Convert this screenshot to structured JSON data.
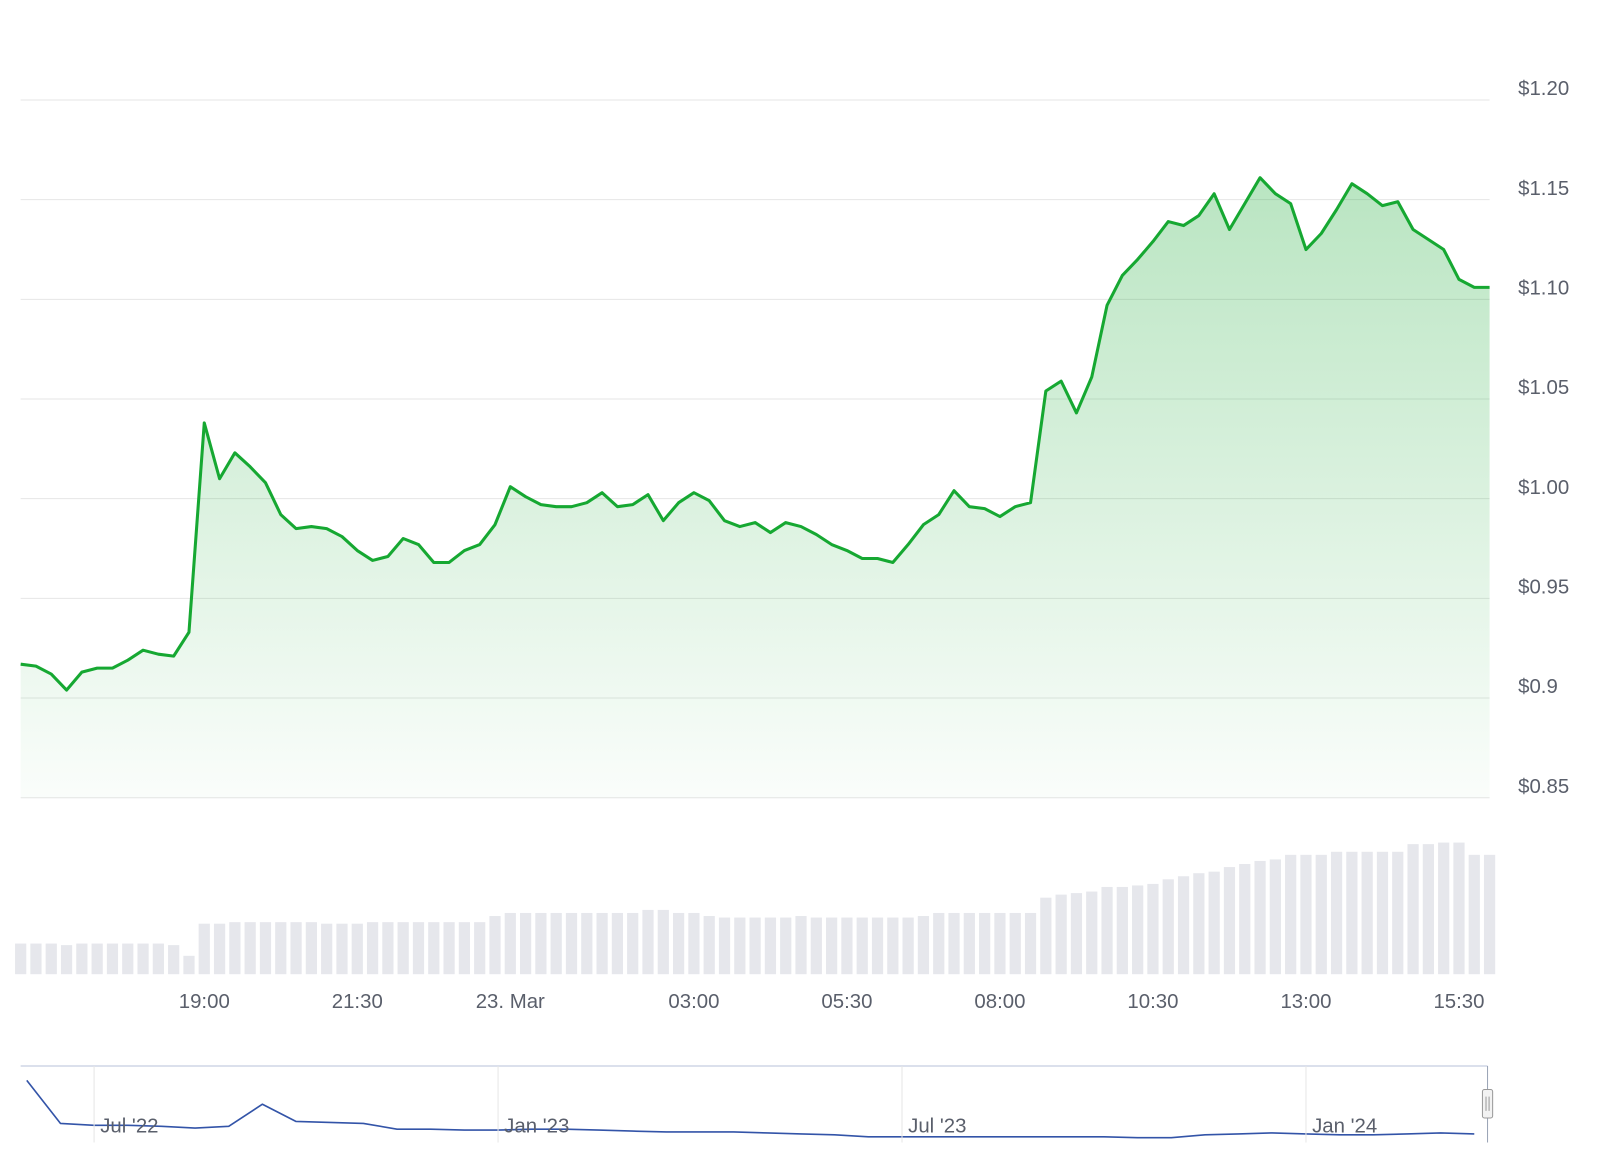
{
  "chart_data": [
    {
      "type": "area",
      "categories": [
        null,
        null,
        null,
        null,
        null,
        null,
        null,
        null,
        null,
        null,
        null,
        null,
        "19:00",
        null,
        null,
        null,
        null,
        null,
        null,
        null,
        null,
        null,
        "21:30",
        null,
        null,
        null,
        null,
        null,
        null,
        null,
        null,
        null,
        "23. Mar",
        null,
        null,
        null,
        null,
        null,
        null,
        null,
        null,
        null,
        null,
        null,
        "03:00",
        null,
        null,
        null,
        null,
        null,
        null,
        null,
        null,
        null,
        "05:30",
        null,
        null,
        null,
        null,
        null,
        null,
        null,
        null,
        null,
        "08:00",
        null,
        null,
        null,
        null,
        null,
        null,
        null,
        null,
        null,
        "10:30",
        null,
        null,
        null,
        null,
        null,
        null,
        null,
        null,
        null,
        "13:00",
        null,
        null,
        null,
        null,
        null,
        null,
        null,
        null,
        null,
        "15:30",
        null,
        null
      ],
      "series": [
        {
          "color": "#16a832",
          "values": [
            0.917,
            0.916,
            0.912,
            0.904,
            0.913,
            0.915,
            0.915,
            0.919,
            0.924,
            0.922,
            0.921,
            0.933,
            1.038,
            1.01,
            1.023,
            1.016,
            1.008,
            0.992,
            0.985,
            0.986,
            0.985,
            0.981,
            0.974,
            0.969,
            0.971,
            0.98,
            0.977,
            0.968,
            0.968,
            0.974,
            0.977,
            0.987,
            1.006,
            1.001,
            0.997,
            0.996,
            0.996,
            0.998,
            1.003,
            0.996,
            0.997,
            1.002,
            0.989,
            0.998,
            1.003,
            0.999,
            0.989,
            0.986,
            0.988,
            0.983,
            0.988,
            0.986,
            0.982,
            0.977,
            0.974,
            0.97,
            0.97,
            0.968,
            0.977,
            0.987,
            0.992,
            1.004,
            0.996,
            0.995,
            0.991,
            0.996,
            0.998,
            1.054,
            1.059,
            1.043,
            1.061,
            1.097,
            1.112,
            1.12,
            1.129,
            1.139,
            1.137,
            1.142,
            1.153,
            1.135,
            1.148,
            1.161,
            1.153,
            1.148,
            1.125,
            1.133,
            1.145,
            1.158,
            1.153,
            1.147,
            1.149,
            1.135,
            1.13,
            1.125,
            1.11,
            1.106,
            1.106
          ]
        },
        {
          "type": "bar",
          "axis": "y2",
          "color": "#e6e7ec",
          "values": [
            20,
            20,
            20,
            19,
            20,
            20,
            20,
            20,
            20,
            20,
            19,
            12,
            33,
            33,
            34,
            34,
            34,
            34,
            34,
            34,
            33,
            33,
            33,
            34,
            34,
            34,
            34,
            34,
            34,
            34,
            34,
            38,
            40,
            40,
            40,
            40,
            40,
            40,
            40,
            40,
            40,
            42,
            42,
            40,
            40,
            38,
            37,
            37,
            37,
            37,
            37,
            38,
            37,
            37,
            37,
            37,
            37,
            37,
            37,
            38,
            40,
            40,
            40,
            40,
            40,
            40,
            40,
            50,
            52,
            53,
            54,
            57,
            57,
            58,
            59,
            62,
            64,
            66,
            67,
            70,
            72,
            74,
            75,
            78,
            78,
            78,
            80,
            80,
            80,
            80,
            80,
            85,
            85,
            86,
            86,
            78,
            78
          ]
        }
      ],
      "ylim": [
        0.85,
        1.2
      ],
      "yticks": [
        {
          "value": 1.2,
          "label": "$1.20"
        },
        {
          "value": 1.15,
          "label": "$1.15"
        },
        {
          "value": 1.1,
          "label": "$1.10"
        },
        {
          "value": 1.05,
          "label": "$1.05"
        },
        {
          "value": 1.0,
          "label": "$1.00"
        },
        {
          "value": 0.95,
          "label": "$0.95"
        },
        {
          "value": 0.9,
          "label": "$0.9"
        },
        {
          "value": 0.85,
          "label": "$0.85"
        }
      ],
      "y2lim": [
        0,
        100
      ],
      "grid": true
    },
    {
      "type": "line",
      "categories": [
        null,
        null,
        "Jul '22",
        null,
        null,
        null,
        null,
        null,
        null,
        null,
        null,
        null,
        null,
        null,
        "Jan '23",
        null,
        null,
        null,
        null,
        null,
        null,
        null,
        null,
        null,
        null,
        null,
        "Jul '23",
        null,
        null,
        null,
        null,
        null,
        null,
        null,
        null,
        null,
        null,
        null,
        "Jan '24",
        null,
        null,
        null,
        null,
        null
      ],
      "series": [
        {
          "color": "#3354a8",
          "values": [
            65,
            20,
            18,
            18,
            17,
            15,
            17,
            40,
            22,
            21,
            20,
            14,
            14,
            13,
            13,
            14,
            14,
            13,
            12,
            11,
            11,
            11,
            10,
            9,
            8,
            6,
            6,
            6,
            6,
            6,
            6,
            6,
            6,
            5,
            5,
            8,
            9,
            10,
            9,
            8,
            8,
            9,
            10,
            9
          ]
        }
      ],
      "ylim": [
        0,
        80
      ],
      "grid": true
    }
  ]
}
